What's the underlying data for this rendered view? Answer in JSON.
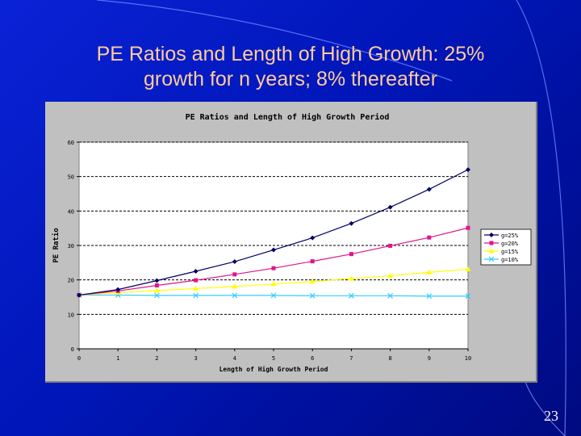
{
  "slide": {
    "title_line1": "PE Ratios and Length of High Growth: 25%",
    "title_line2": "growth for n years; 8% thereafter",
    "page_number": "23"
  },
  "colors": {
    "background": "#0016b8",
    "title": "#ffcc99",
    "chart_panel": "#c0c0c0",
    "plot_area": "#ffffff"
  },
  "chart_data": {
    "type": "line",
    "title": "PE Ratios and Length of High Growth Period",
    "xlabel": "Length of High Growth Period",
    "ylabel": "PE Ratio",
    "x": [
      0,
      1,
      2,
      3,
      4,
      5,
      6,
      7,
      8,
      9,
      10
    ],
    "x_tick_labels": [
      "0",
      "1",
      "2",
      "3",
      "4",
      "5",
      "6",
      "7",
      "8",
      "9",
      "10"
    ],
    "y_ticks": [
      0,
      10,
      20,
      30,
      40,
      50,
      60
    ],
    "y_tick_labels": [
      "0",
      "10",
      "20",
      "30",
      "40",
      "50",
      "60"
    ],
    "xlim": [
      0,
      10
    ],
    "ylim": [
      0,
      60
    ],
    "grid": "horizontal dashed",
    "legend_position": "right",
    "series": [
      {
        "name": "g=25%",
        "color": "#000066",
        "marker": "diamond",
        "values": [
          15.6,
          17.2,
          19.8,
          22.5,
          25.3,
          28.7,
          32.2,
          36.4,
          41.1,
          46.3,
          52.0
        ]
      },
      {
        "name": "g=20%",
        "color": "#e0148c",
        "marker": "square",
        "values": [
          15.6,
          16.8,
          18.4,
          19.9,
          21.6,
          23.4,
          25.4,
          27.5,
          29.9,
          32.3,
          35.1
        ]
      },
      {
        "name": "g=15%",
        "color": "#ffff00",
        "marker": "triangle",
        "values": [
          15.6,
          16.3,
          16.9,
          17.5,
          18.1,
          18.8,
          19.5,
          20.4,
          21.2,
          22.2,
          23.1
        ]
      },
      {
        "name": "g=10%",
        "color": "#33ccff",
        "marker": "x",
        "values": [
          15.6,
          15.6,
          15.5,
          15.5,
          15.5,
          15.5,
          15.4,
          15.4,
          15.4,
          15.3,
          15.3
        ]
      }
    ]
  }
}
